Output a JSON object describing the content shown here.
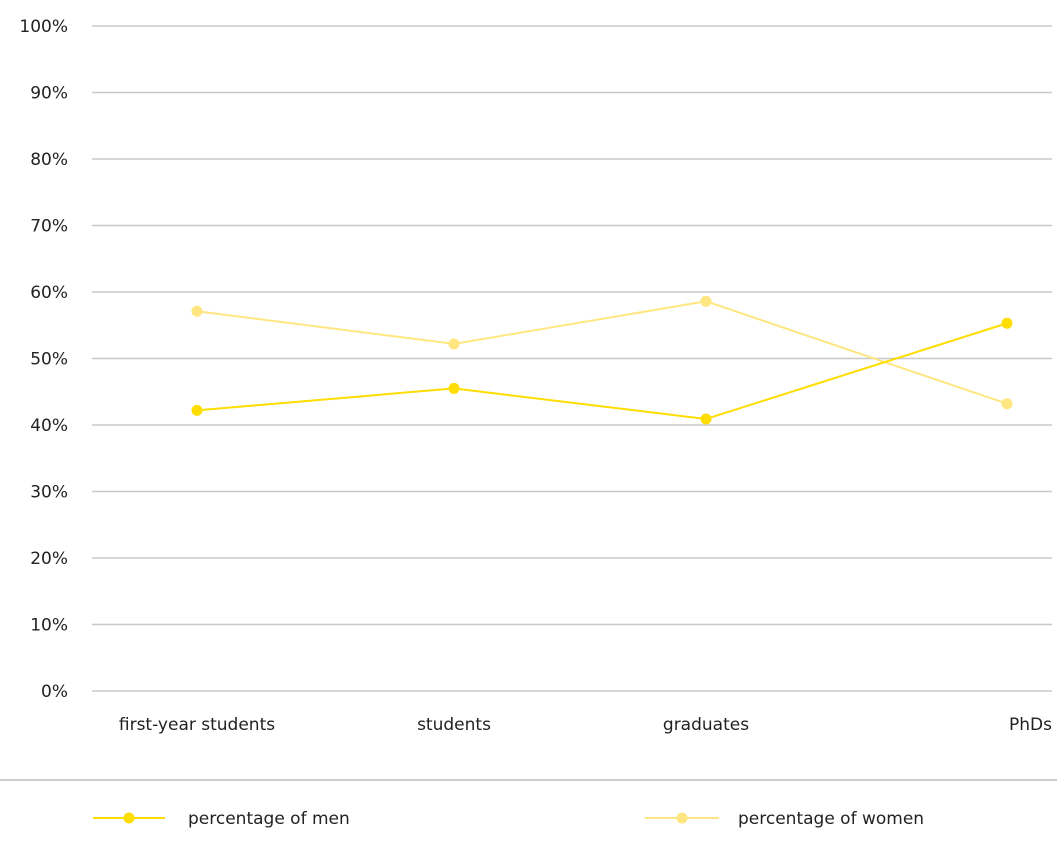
{
  "chart_data": {
    "type": "line",
    "categories": [
      "first-year students",
      "students",
      "graduates",
      "PhDs"
    ],
    "series": [
      {
        "name": "percentage of men",
        "values": [
          42.2,
          45.5,
          40.9,
          55.3
        ],
        "color": "#ffdd00"
      },
      {
        "name": "percentage of women",
        "values": [
          57.1,
          52.2,
          58.6,
          43.2
        ],
        "color": "#ffe680"
      }
    ],
    "y_ticks": [
      "0%",
      "10%",
      "20%",
      "30%",
      "40%",
      "50%",
      "60%",
      "70%",
      "80%",
      "90%",
      "100%"
    ],
    "ylim": [
      0,
      100
    ],
    "grid": true,
    "legend_position": "bottom"
  }
}
